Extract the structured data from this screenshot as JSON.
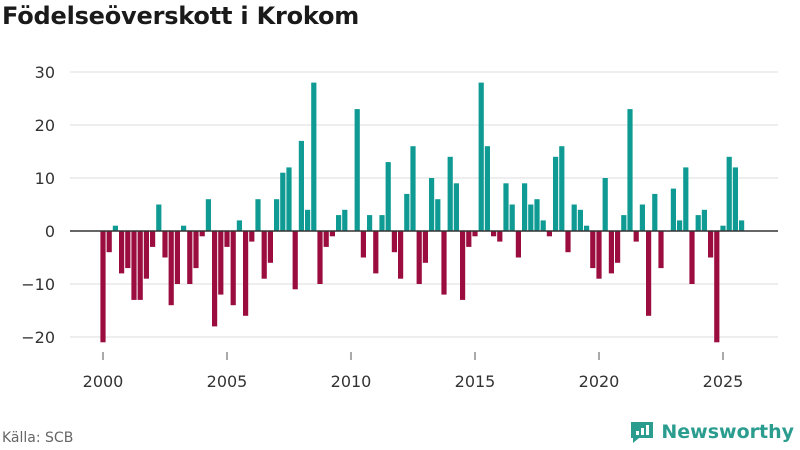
{
  "header": {
    "title": "Födelseöverskott i Krokom"
  },
  "footer": {
    "source": "Källa: SCB",
    "brand": "Newsworthy"
  },
  "colors": {
    "positive": "#0f9b93",
    "negative": "#9b0d3f",
    "grid": "#dddddd",
    "zero_line": "#333333",
    "brand": "#2a9d8f"
  },
  "chart_data": {
    "type": "bar",
    "title": "Födelseöverskott i Krokom",
    "xlabel": "",
    "ylabel": "",
    "ylim": [
      -24,
      33
    ],
    "yticks": [
      30,
      20,
      10,
      0,
      -10,
      -20
    ],
    "ytick_labels": [
      "30",
      "20",
      "10",
      "0",
      "−10",
      "−20"
    ],
    "xticks": [
      2000,
      2005,
      2010,
      2015,
      2020,
      2025
    ],
    "xtick_labels": [
      "2000",
      "2005",
      "2010",
      "2015",
      "2020",
      "2025"
    ],
    "period": "quarterly",
    "start": "2000-Q1",
    "values": [
      -21,
      -4,
      1,
      -8,
      -7,
      -13,
      -13,
      -9,
      -3,
      5,
      -5,
      -14,
      -10,
      1,
      -10,
      -7,
      -1,
      6,
      -18,
      -12,
      -3,
      -14,
      2,
      -16,
      -2,
      6,
      -9,
      -6,
      6,
      11,
      12,
      -11,
      17,
      4,
      28,
      -10,
      -3,
      -1,
      3,
      4,
      0,
      23,
      -5,
      3,
      -8,
      3,
      13,
      -4,
      -9,
      7,
      16,
      -10,
      -6,
      10,
      6,
      -12,
      14,
      9,
      -13,
      -3,
      -1,
      28,
      16,
      -1,
      -2,
      9,
      5,
      -5,
      9,
      5,
      6,
      2,
      -1,
      14,
      16,
      -4,
      5,
      4,
      1,
      -7,
      -9,
      10,
      -8,
      -6,
      3,
      23,
      -2,
      5,
      -16,
      7,
      -7,
      0,
      8,
      2,
      12,
      -10,
      3,
      4,
      -5,
      -21,
      1,
      14,
      12,
      2
    ]
  }
}
